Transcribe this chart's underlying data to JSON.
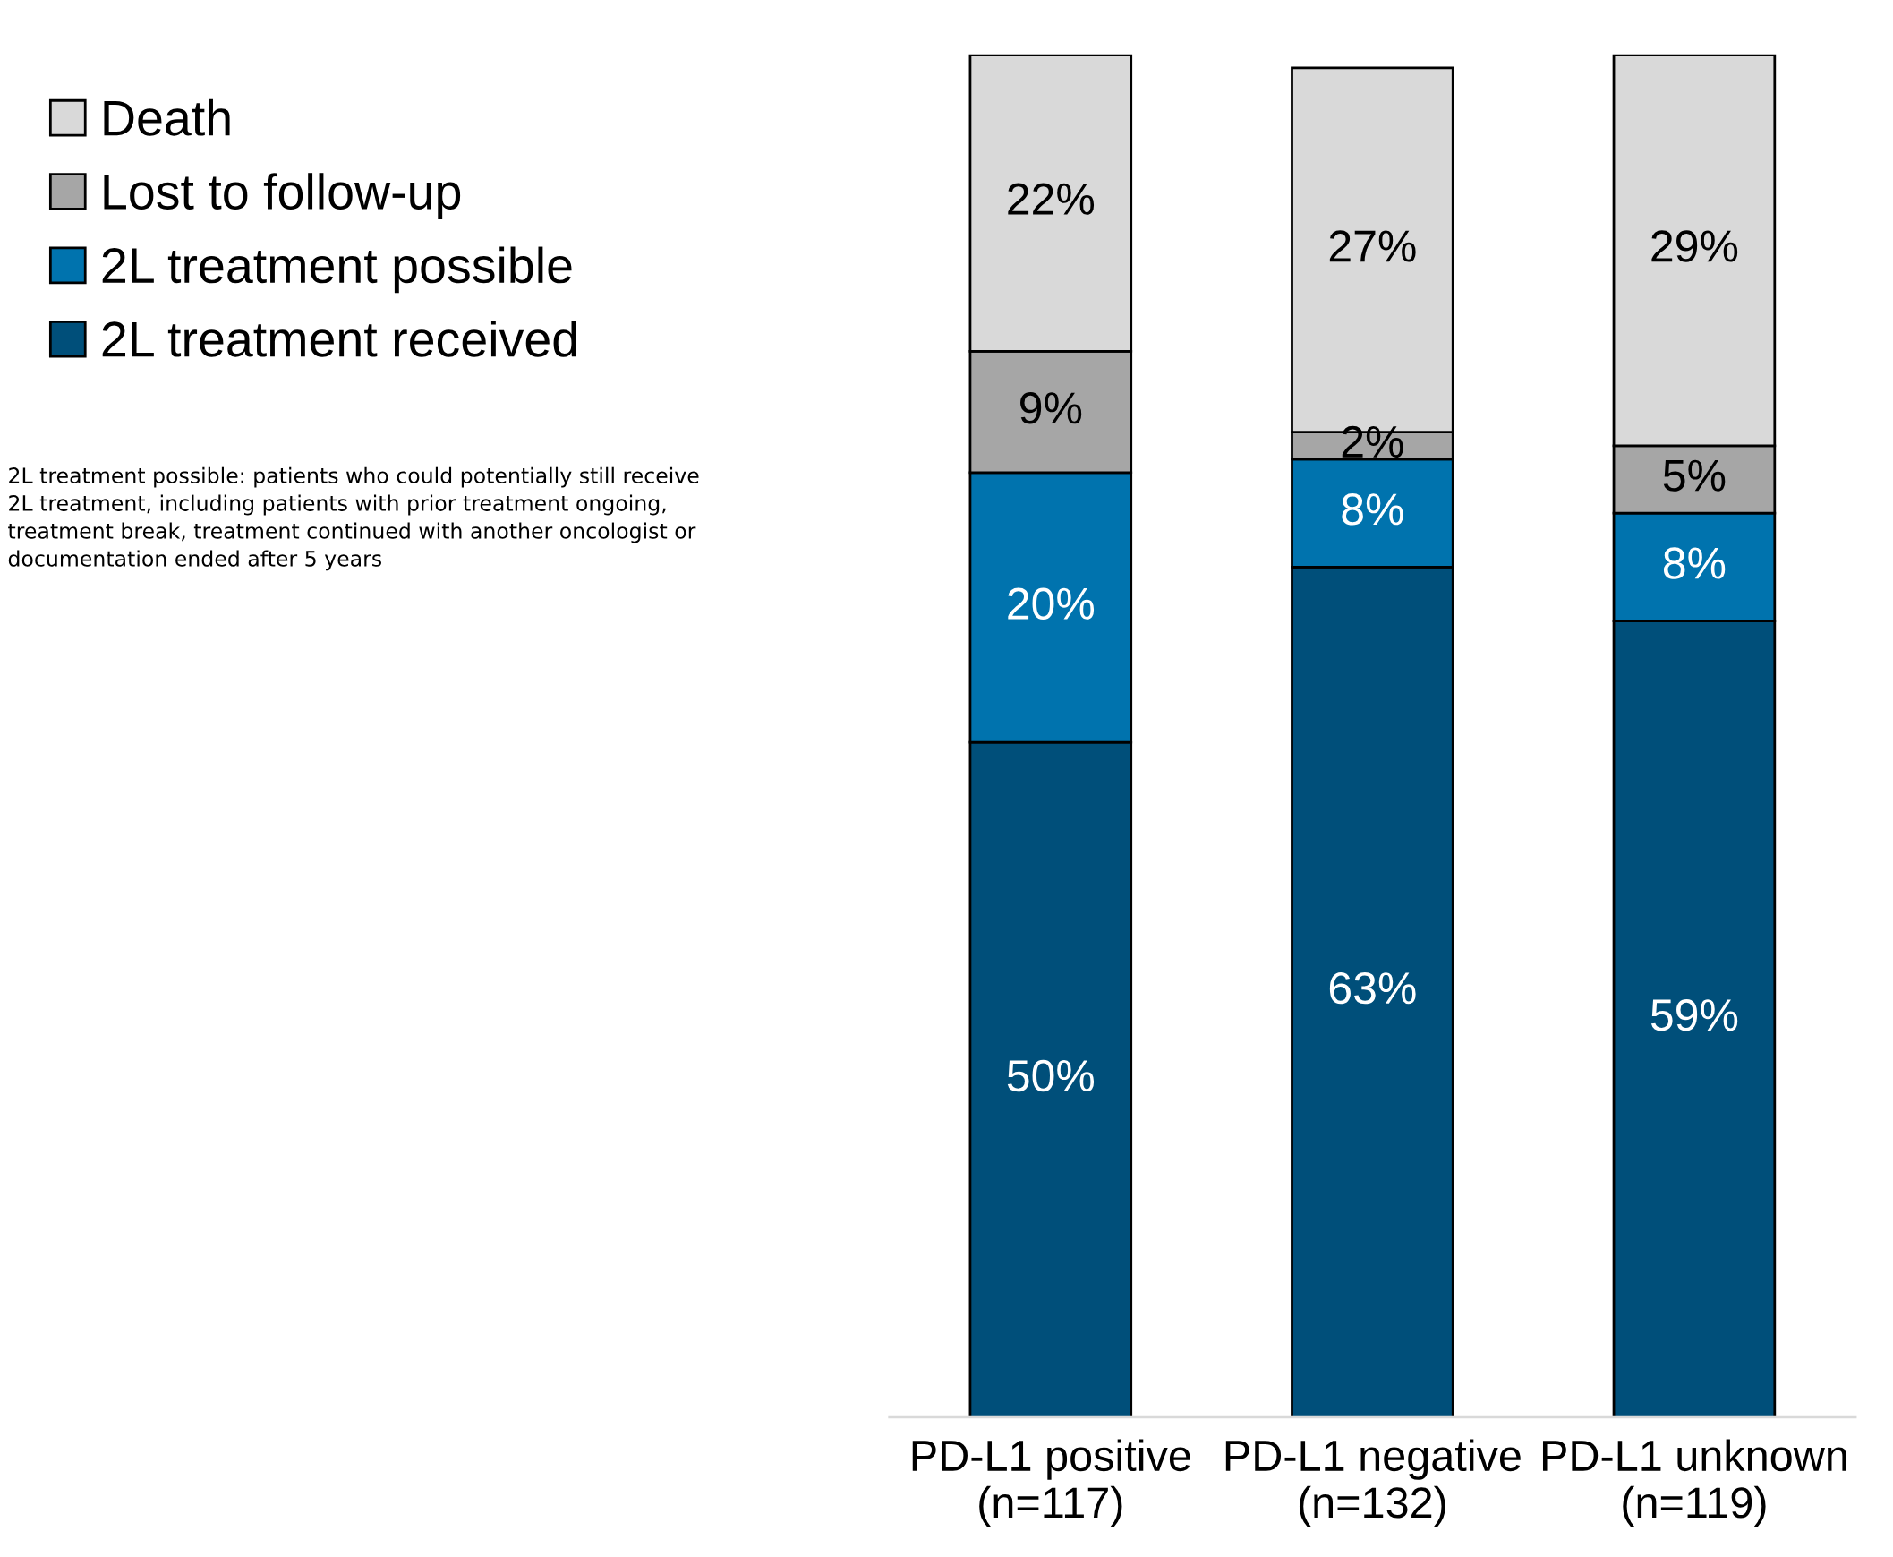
{
  "chart_data": {
    "type": "bar",
    "stacked": true,
    "legend": "left",
    "grid": false,
    "categories": [
      "PD-L1 positive\n(n=117)",
      "PD-L1 negative\n(n=132)",
      "PD-L1 unknown\n(n=119)"
    ],
    "series": [
      {
        "name": "2L treatment received",
        "color": "#004f7a",
        "values": [
          50,
          63,
          59
        ],
        "value_labels": [
          "50%",
          "63%",
          "59%"
        ]
      },
      {
        "name": "2L treatment possible",
        "color": "#0073ae",
        "values": [
          20,
          8,
          8
        ],
        "value_labels": [
          "20%",
          "8%",
          "8%"
        ]
      },
      {
        "name": "Lost to follow-up",
        "color": "#a6a6a6",
        "values": [
          9,
          2,
          5
        ],
        "value_labels": [
          "9%",
          "2%",
          "5%"
        ]
      },
      {
        "name": "Death",
        "color": "#d9d9d9",
        "values": [
          22,
          27,
          29
        ],
        "value_labels": [
          "22%",
          "27%",
          "29%"
        ]
      }
    ],
    "annotations": [
      "2L treatment possible: patients who could potentially still receive\n2L treatment, including patients with prior treatment ongoing,\ntreatment break, treatment continued with another oncologist or\ndocumentation ended after 5 years"
    ]
  }
}
